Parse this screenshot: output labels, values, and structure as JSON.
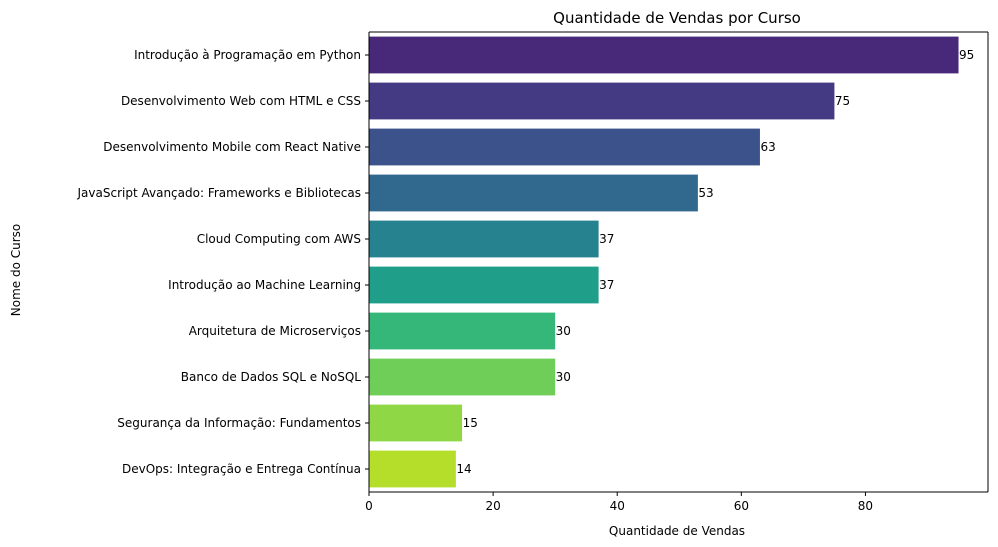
{
  "chart_data": {
    "type": "bar",
    "orientation": "horizontal",
    "title": "Quantidade de Vendas por Curso",
    "xlabel": "Quantidade de Vendas",
    "ylabel": "Nome do Curso",
    "xlim": [
      0,
      99.75
    ],
    "xticks": [
      0,
      20,
      40,
      60,
      80
    ],
    "grid": false,
    "legend": "none",
    "categories": [
      "Introdução à Programação em Python",
      "Desenvolvimento Web com HTML e CSS",
      "Desenvolvimento Mobile com React Native",
      "JavaScript Avançado: Frameworks e Bibliotecas",
      "Cloud Computing com AWS",
      "Introdução ao Machine Learning",
      "Arquitetura de Microserviços",
      "Banco de Dados SQL e NoSQL",
      "Segurança da Informação: Fundamentos",
      "DevOps: Integração e Entrega Contínua"
    ],
    "values": [
      95,
      75,
      63,
      53,
      37,
      37,
      30,
      30,
      15,
      14
    ],
    "colors": [
      "#482878",
      "#443a83",
      "#3b528b",
      "#31688e",
      "#26828e",
      "#1f9e89",
      "#35b779",
      "#6ece58",
      "#8fd744",
      "#b5de2b"
    ]
  }
}
